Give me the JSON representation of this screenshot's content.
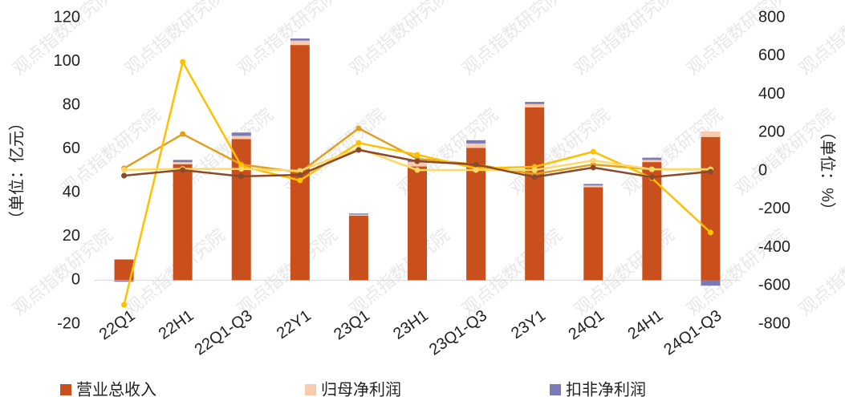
{
  "chart_data": {
    "type": "bar-line",
    "watermark": "观点指数研究院",
    "y_label": "（单位：亿元）",
    "y2_label": "（单位：%）",
    "categories": [
      "22Q1",
      "22H1",
      "22Q1-Q3",
      "22Y1",
      "23Q1",
      "23H1",
      "23Q1-Q3",
      "23Y1",
      "24Q1",
      "24H1",
      "24Q1-Q3"
    ],
    "ylim": [
      -20,
      120
    ],
    "yticks": [
      -20,
      0,
      20,
      40,
      60,
      80,
      100,
      120
    ],
    "y2lim": [
      -800,
      800
    ],
    "y2ticks": [
      -800,
      -600,
      -400,
      -200,
      0,
      200,
      400,
      600,
      800
    ],
    "series": [
      {
        "name": "营业总收入",
        "kind": "bar",
        "color": "#c9501c",
        "values": [
          9.5,
          53,
          64.5,
          107.5,
          29.5,
          52,
          60.5,
          79,
          42.5,
          54,
          65.5
        ]
      },
      {
        "name": "归母净利润",
        "kind": "bar",
        "color": "#f8cbad",
        "values": [
          -0.2,
          1,
          1.5,
          2,
          0.5,
          2,
          2,
          1.5,
          0.8,
          1,
          2.5
        ]
      },
      {
        "name": "扣非净利润",
        "kind": "bar",
        "color": "#7a7ab5",
        "values": [
          -0.5,
          1,
          1.5,
          1,
          0.5,
          1,
          1.5,
          1,
          0.7,
          1,
          -2.5
        ]
      },
      {
        "kind": "line",
        "axis": "y2",
        "color": "#e0a020",
        "values": [
          13,
          192,
          33,
          -8,
          222,
          63,
          33,
          -17,
          33,
          8,
          8
        ]
      },
      {
        "kind": "line",
        "axis": "y2",
        "color": "#ffc000",
        "values": [
          -700,
          569,
          25,
          -50,
          146,
          84,
          13,
          21,
          100,
          -38,
          -322
        ]
      },
      {
        "kind": "line",
        "axis": "y2",
        "color": "#ffd966",
        "values": [
          5,
          10,
          10,
          0,
          117,
          4,
          4,
          4,
          54,
          8,
          8
        ]
      },
      {
        "kind": "line",
        "axis": "y2",
        "color": "#8b4a2b",
        "values": [
          -25,
          4,
          -29,
          -21,
          109,
          50,
          33,
          -33,
          17,
          -33,
          -4
        ]
      }
    ]
  }
}
